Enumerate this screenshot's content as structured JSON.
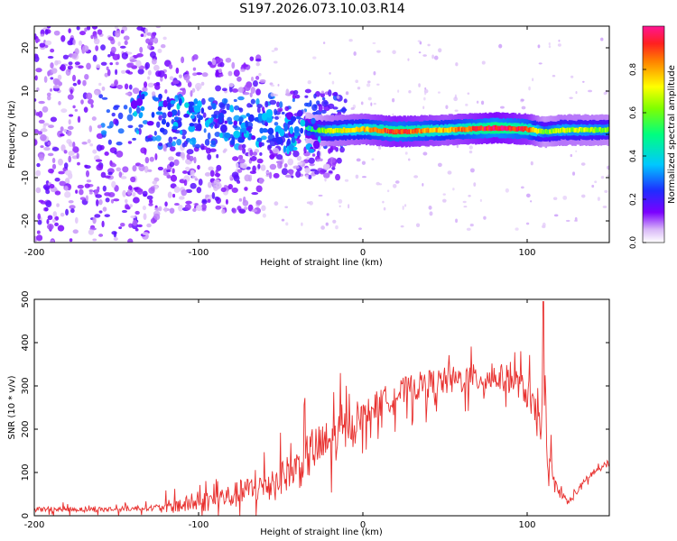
{
  "chart_data": [
    {
      "type": "heatmap",
      "title": "S197.2026.073.10.03.R14",
      "xlabel": "Height of straight line (km)",
      "ylabel": "Frequency (Hz)",
      "xlim": [
        -200,
        150
      ],
      "ylim": [
        -25,
        25
      ],
      "xticks": [
        "-200",
        "-100",
        "0",
        "100"
      ],
      "xtick_values": [
        -200,
        -100,
        0,
        100
      ],
      "yticks": [
        "-20",
        "-10",
        "0",
        "10",
        "20"
      ],
      "ytick_values": [
        -20,
        -10,
        0,
        10,
        20
      ],
      "colorbar": {
        "label": "Normalized spectral amplitude",
        "range": [
          0,
          1
        ],
        "ticks": [
          "0.0",
          "0.2",
          "0.4",
          "0.6",
          "0.8"
        ],
        "tick_values": [
          0,
          0.2,
          0.4,
          0.6,
          0.8
        ]
      },
      "ridge": {
        "description": "Dominant spectral line near 0-2 Hz from about -35 km to 150 km",
        "x": [
          -60,
          -50,
          -40,
          -30,
          -20,
          0,
          20,
          50,
          80,
          100,
          110,
          120,
          150
        ],
        "frequency": [
          6,
          4,
          2,
          1,
          0.8,
          1.2,
          0.6,
          1.0,
          1.5,
          1.2,
          0.5,
          1.0,
          1.0
        ],
        "amplitude": [
          0.25,
          0.3,
          0.35,
          0.45,
          0.6,
          0.7,
          0.85,
          0.7,
          0.9,
          0.8,
          0.5,
          0.6,
          0.55
        ]
      }
    },
    {
      "type": "line",
      "xlabel": "Height of straight line (km)",
      "ylabel": "SNR (10 * v/v)",
      "xlim": [
        -200,
        150
      ],
      "ylim": [
        0,
        500
      ],
      "xticks": [
        "-200",
        "-100",
        "0",
        "100"
      ],
      "xtick_values": [
        -200,
        -100,
        0,
        100
      ],
      "yticks": [
        "0",
        "100",
        "200",
        "300",
        "400",
        "500"
      ],
      "ytick_values": [
        0,
        100,
        200,
        300,
        400,
        500
      ],
      "color": "#e8302e",
      "series": [
        {
          "name": "SNR",
          "x": [
            -200,
            -150,
            -120,
            -100,
            -80,
            -60,
            -40,
            -30,
            -20,
            -10,
            0,
            10,
            20,
            30,
            40,
            50,
            60,
            70,
            80,
            90,
            95,
            100,
            105,
            108,
            110,
            112,
            115,
            120,
            125,
            130,
            140,
            150
          ],
          "y": [
            15,
            15,
            20,
            30,
            45,
            70,
            110,
            150,
            170,
            200,
            230,
            260,
            280,
            295,
            305,
            310,
            315,
            318,
            320,
            315,
            305,
            280,
            230,
            200,
            330,
            120,
            90,
            55,
            30,
            55,
            100,
            120
          ]
        }
      ],
      "annotations": [
        {
          "x": 110,
          "y": 495,
          "note": "sharp spike"
        }
      ]
    }
  ]
}
